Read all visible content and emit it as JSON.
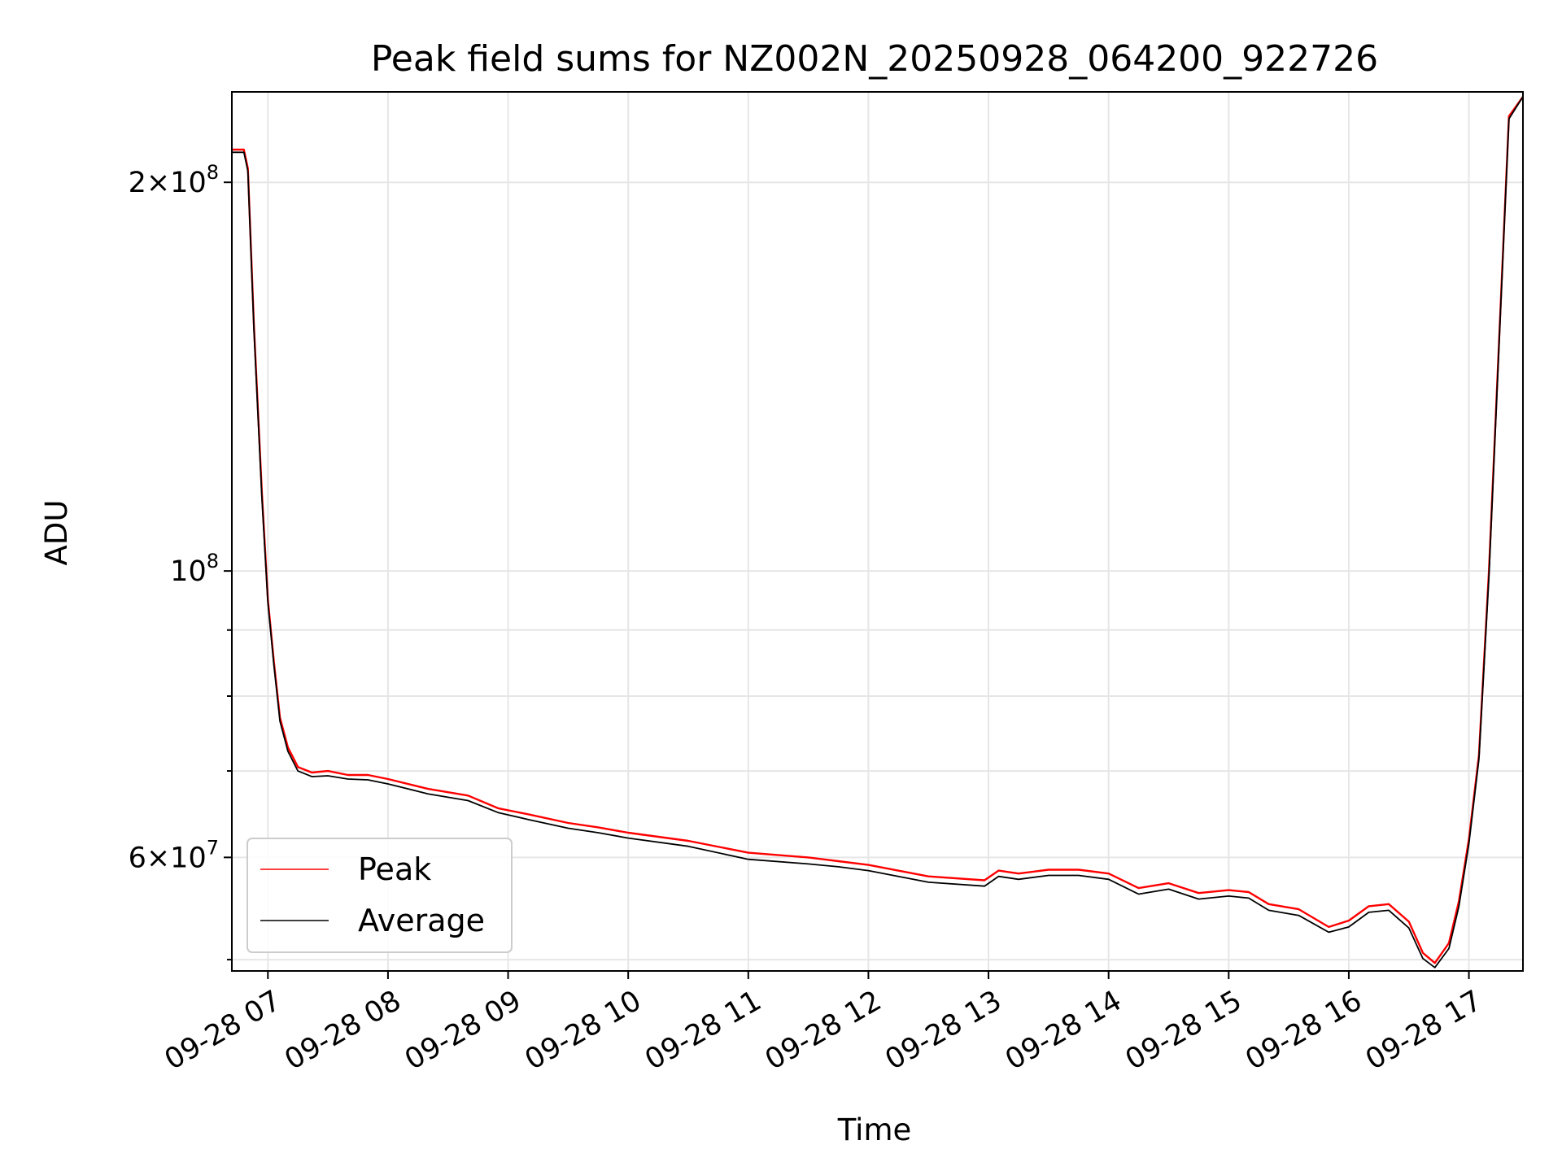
{
  "chart_data": {
    "type": "line",
    "title": "Peak field sums for NZ002N_20250928_064200_922726",
    "xlabel": "Time",
    "ylabel": "ADU",
    "y_scale": "log",
    "ylim": [
      49000000,
      235000000
    ],
    "xlim": [
      "2025-09-28 06:42",
      "2025-09-28 17:27"
    ],
    "grid": true,
    "legend_position": "lower-left",
    "x_ticks": [
      {
        "value": "2025-09-28 07:00",
        "label": "09-28 07"
      },
      {
        "value": "2025-09-28 08:00",
        "label": "09-28 08"
      },
      {
        "value": "2025-09-28 09:00",
        "label": "09-28 09"
      },
      {
        "value": "2025-09-28 10:00",
        "label": "09-28 10"
      },
      {
        "value": "2025-09-28 11:00",
        "label": "09-28 11"
      },
      {
        "value": "2025-09-28 12:00",
        "label": "09-28 12"
      },
      {
        "value": "2025-09-28 13:00",
        "label": "09-28 13"
      },
      {
        "value": "2025-09-28 14:00",
        "label": "09-28 14"
      },
      {
        "value": "2025-09-28 15:00",
        "label": "09-28 15"
      },
      {
        "value": "2025-09-28 16:00",
        "label": "09-28 16"
      },
      {
        "value": "2025-09-28 17:00",
        "label": "09-28 17"
      }
    ],
    "y_major_ticks": [
      {
        "value": 200000000,
        "mantissa": "2",
        "exponent": "8"
      },
      {
        "value": 100000000,
        "mantissa": "",
        "exponent": "8"
      },
      {
        "value": 60000000,
        "mantissa": "6",
        "exponent": "7"
      }
    ],
    "y_minor_ticks": [
      50000000,
      70000000,
      80000000,
      90000000
    ],
    "series": [
      {
        "name": "Peak",
        "color": "#ff0000",
        "x": [
          "2025-09-28 06:42",
          "2025-09-28 06:48",
          "2025-09-28 06:50",
          "2025-09-28 06:53",
          "2025-09-28 06:57",
          "2025-09-28 07:00",
          "2025-09-28 07:03",
          "2025-09-28 07:06",
          "2025-09-28 07:10",
          "2025-09-28 07:15",
          "2025-09-28 07:22",
          "2025-09-28 07:30",
          "2025-09-28 07:40",
          "2025-09-28 07:50",
          "2025-09-28 08:00",
          "2025-09-28 08:20",
          "2025-09-28 08:40",
          "2025-09-28 08:55",
          "2025-09-28 09:10",
          "2025-09-28 09:30",
          "2025-09-28 09:45",
          "2025-09-28 10:00",
          "2025-09-28 10:30",
          "2025-09-28 11:00",
          "2025-09-28 11:30",
          "2025-09-28 11:45",
          "2025-09-28 12:00",
          "2025-09-28 12:30",
          "2025-09-28 12:58",
          "2025-09-28 13:05",
          "2025-09-28 13:15",
          "2025-09-28 13:30",
          "2025-09-28 13:45",
          "2025-09-28 14:00",
          "2025-09-28 14:15",
          "2025-09-28 14:30",
          "2025-09-28 14:45",
          "2025-09-28 15:00",
          "2025-09-28 15:10",
          "2025-09-28 15:20",
          "2025-09-28 15:35",
          "2025-09-28 15:50",
          "2025-09-28 16:00",
          "2025-09-28 16:10",
          "2025-09-28 16:20",
          "2025-09-28 16:30",
          "2025-09-28 16:37",
          "2025-09-28 16:43",
          "2025-09-28 16:50",
          "2025-09-28 16:55",
          "2025-09-28 17:00",
          "2025-09-28 17:05",
          "2025-09-28 17:10",
          "2025-09-28 17:15",
          "2025-09-28 17:20",
          "2025-09-28 17:27"
        ],
        "y": [
          212000000,
          212000000,
          205000000,
          155000000,
          115000000,
          95000000,
          85000000,
          77000000,
          73000000,
          70500000,
          69800000,
          70000000,
          69500000,
          69500000,
          69000000,
          67800000,
          67000000,
          65500000,
          64800000,
          63800000,
          63300000,
          62700000,
          61800000,
          60500000,
          60000000,
          59600000,
          59200000,
          58000000,
          57600000,
          58600000,
          58300000,
          58700000,
          58700000,
          58300000,
          56800000,
          57300000,
          56300000,
          56600000,
          56400000,
          55200000,
          54700000,
          53000000,
          53600000,
          55000000,
          55200000,
          53500000,
          50600000,
          49700000,
          51500000,
          55500000,
          62000000,
          72000000,
          100000000,
          150000000,
          225000000,
          233000000
        ]
      },
      {
        "name": "Average",
        "color": "#000000",
        "x": [
          "2025-09-28 06:42",
          "2025-09-28 06:48",
          "2025-09-28 06:50",
          "2025-09-28 06:53",
          "2025-09-28 06:57",
          "2025-09-28 07:00",
          "2025-09-28 07:03",
          "2025-09-28 07:06",
          "2025-09-28 07:10",
          "2025-09-28 07:15",
          "2025-09-28 07:22",
          "2025-09-28 07:30",
          "2025-09-28 07:40",
          "2025-09-28 07:50",
          "2025-09-28 08:00",
          "2025-09-28 08:20",
          "2025-09-28 08:40",
          "2025-09-28 08:55",
          "2025-09-28 09:10",
          "2025-09-28 09:30",
          "2025-09-28 09:45",
          "2025-09-28 10:00",
          "2025-09-28 10:30",
          "2025-09-28 11:00",
          "2025-09-28 11:30",
          "2025-09-28 11:45",
          "2025-09-28 12:00",
          "2025-09-28 12:30",
          "2025-09-28 12:58",
          "2025-09-28 13:05",
          "2025-09-28 13:15",
          "2025-09-28 13:30",
          "2025-09-28 13:45",
          "2025-09-28 14:00",
          "2025-09-28 14:15",
          "2025-09-28 14:30",
          "2025-09-28 14:45",
          "2025-09-28 15:00",
          "2025-09-28 15:10",
          "2025-09-28 15:20",
          "2025-09-28 15:35",
          "2025-09-28 15:50",
          "2025-09-28 16:00",
          "2025-09-28 16:10",
          "2025-09-28 16:20",
          "2025-09-28 16:30",
          "2025-09-28 16:37",
          "2025-09-28 16:43",
          "2025-09-28 16:50",
          "2025-09-28 16:55",
          "2025-09-28 17:00",
          "2025-09-28 17:05",
          "2025-09-28 17:10",
          "2025-09-28 17:15",
          "2025-09-28 17:20",
          "2025-09-28 17:27"
        ],
        "y": [
          211000000,
          211000000,
          204000000,
          154000000,
          114000000,
          94500000,
          84500000,
          76500000,
          72500000,
          70000000,
          69300000,
          69400000,
          69000000,
          68900000,
          68400000,
          67200000,
          66400000,
          65000000,
          64200000,
          63200000,
          62700000,
          62100000,
          61200000,
          59800000,
          59300000,
          59000000,
          58600000,
          57400000,
          57000000,
          58000000,
          57700000,
          58100000,
          58100000,
          57700000,
          56200000,
          56700000,
          55700000,
          56000000,
          55800000,
          54600000,
          54100000,
          52500000,
          53000000,
          54400000,
          54600000,
          52900000,
          50100000,
          49300000,
          51000000,
          55000000,
          61500000,
          71500000,
          99000000,
          149000000,
          224000000,
          233000000
        ]
      }
    ]
  }
}
